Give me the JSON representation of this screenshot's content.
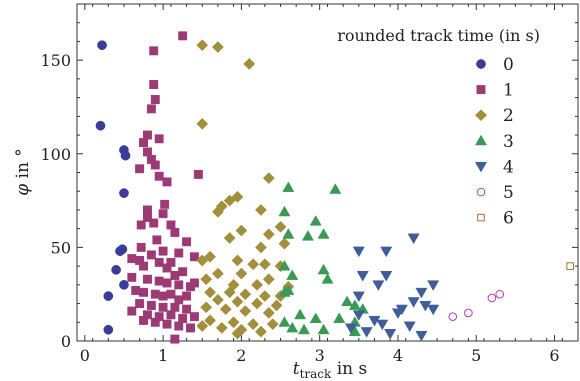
{
  "chart_data": {
    "type": "scatter",
    "xlabel": {
      "italic": "t",
      "subscript": "track",
      "suffix": " in s"
    },
    "ylabel": {
      "italic": "φ",
      "suffix": " in °"
    },
    "xlim": [
      -0.1,
      6.3
    ],
    "ylim": [
      0,
      180
    ],
    "xticks": [
      0,
      1,
      2,
      3,
      4,
      5,
      6
    ],
    "yticks": [
      0,
      50,
      100,
      150
    ],
    "legend": {
      "title": "rounded track time (in s)",
      "position": "top-right"
    },
    "series": [
      {
        "name": "0",
        "marker": "circle",
        "filled": true,
        "color": "#3b3c99",
        "points": [
          [
            0.22,
            158
          ],
          [
            0.2,
            115
          ],
          [
            0.5,
            102
          ],
          [
            0.52,
            99
          ],
          [
            0.5,
            79
          ],
          [
            0.45,
            48
          ],
          [
            0.48,
            49
          ],
          [
            0.4,
            38
          ],
          [
            0.5,
            30
          ],
          [
            0.3,
            24
          ],
          [
            0.3,
            6
          ]
        ]
      },
      {
        "name": "1",
        "marker": "square",
        "filled": true,
        "color": "#9b3a75",
        "points": [
          [
            1.25,
            163
          ],
          [
            0.88,
            155
          ],
          [
            0.88,
            137
          ],
          [
            0.9,
            129
          ],
          [
            0.85,
            124
          ],
          [
            0.8,
            110
          ],
          [
            0.95,
            108
          ],
          [
            0.75,
            106
          ],
          [
            0.8,
            101
          ],
          [
            0.85,
            97
          ],
          [
            0.9,
            94
          ],
          [
            0.7,
            92
          ],
          [
            0.95,
            88
          ],
          [
            1.05,
            85
          ],
          [
            1.45,
            89
          ],
          [
            1.02,
            73
          ],
          [
            0.8,
            70
          ],
          [
            1.0,
            68
          ],
          [
            0.8,
            66
          ],
          [
            0.88,
            63
          ],
          [
            0.72,
            62
          ],
          [
            1.1,
            62
          ],
          [
            1.15,
            58
          ],
          [
            1.3,
            53
          ],
          [
            0.92,
            54
          ],
          [
            0.72,
            50
          ],
          [
            1.0,
            48
          ],
          [
            1.2,
            47
          ],
          [
            0.85,
            46
          ],
          [
            1.4,
            45
          ],
          [
            0.6,
            44
          ],
          [
            0.7,
            43
          ],
          [
            0.95,
            42
          ],
          [
            1.1,
            42
          ],
          [
            0.75,
            40
          ],
          [
            1.05,
            39
          ],
          [
            1.25,
            37
          ],
          [
            1.15,
            35
          ],
          [
            0.6,
            34
          ],
          [
            0.8,
            33
          ],
          [
            0.95,
            32
          ],
          [
            1.05,
            31
          ],
          [
            1.2,
            30
          ],
          [
            1.35,
            29
          ],
          [
            1.4,
            31
          ],
          [
            0.65,
            27
          ],
          [
            0.75,
            26
          ],
          [
            0.9,
            25
          ],
          [
            1.0,
            24
          ],
          [
            1.1,
            25
          ],
          [
            1.3,
            24
          ],
          [
            1.2,
            22
          ],
          [
            0.7,
            20
          ],
          [
            0.85,
            19
          ],
          [
            1.0,
            18
          ],
          [
            1.15,
            18
          ],
          [
            1.3,
            17
          ],
          [
            0.6,
            16
          ],
          [
            0.8,
            14
          ],
          [
            0.95,
            13
          ],
          [
            1.1,
            14
          ],
          [
            1.25,
            12
          ],
          [
            1.4,
            13
          ],
          [
            0.75,
            11
          ],
          [
            0.9,
            10
          ],
          [
            1.05,
            9
          ],
          [
            1.2,
            8
          ],
          [
            1.35,
            7
          ],
          [
            1.15,
            1
          ]
        ]
      },
      {
        "name": "2",
        "marker": "diamond",
        "filled": true,
        "color": "#a18f3c",
        "points": [
          [
            1.5,
            158
          ],
          [
            1.7,
            157
          ],
          [
            2.1,
            148
          ],
          [
            1.5,
            116
          ],
          [
            2.35,
            87
          ],
          [
            1.85,
            75
          ],
          [
            1.95,
            77
          ],
          [
            1.75,
            72
          ],
          [
            1.7,
            69
          ],
          [
            2.25,
            70
          ],
          [
            2.5,
            61
          ],
          [
            2.0,
            59
          ],
          [
            2.35,
            57
          ],
          [
            1.85,
            55
          ],
          [
            2.55,
            52
          ],
          [
            2.25,
            50
          ],
          [
            1.6,
            45
          ],
          [
            1.5,
            43
          ],
          [
            1.95,
            43
          ],
          [
            2.15,
            41
          ],
          [
            2.5,
            40
          ],
          [
            2.3,
            41
          ],
          [
            1.7,
            36
          ],
          [
            2.0,
            36
          ],
          [
            1.55,
            33
          ],
          [
            2.35,
            33
          ],
          [
            1.9,
            30
          ],
          [
            2.2,
            30
          ],
          [
            2.6,
            29
          ],
          [
            1.6,
            26
          ],
          [
            1.85,
            26
          ],
          [
            2.05,
            25
          ],
          [
            2.3,
            24
          ],
          [
            2.5,
            24
          ],
          [
            1.7,
            22
          ],
          [
            1.95,
            21
          ],
          [
            2.2,
            20
          ],
          [
            2.45,
            19
          ],
          [
            1.55,
            18
          ],
          [
            1.8,
            17
          ],
          [
            2.05,
            16
          ],
          [
            2.35,
            15
          ],
          [
            1.6,
            11
          ],
          [
            1.9,
            10
          ],
          [
            2.15,
            9
          ],
          [
            2.4,
            9
          ],
          [
            1.5,
            8
          ],
          [
            1.75,
            7
          ],
          [
            2.0,
            6
          ],
          [
            2.25,
            5
          ],
          [
            1.95,
            4
          ]
        ]
      },
      {
        "name": "3",
        "marker": "triangle-up",
        "filled": true,
        "color": "#3a9a55",
        "points": [
          [
            2.6,
            82
          ],
          [
            3.2,
            81
          ],
          [
            2.55,
            69
          ],
          [
            2.95,
            64
          ],
          [
            2.85,
            56
          ],
          [
            2.6,
            57
          ],
          [
            3.05,
            57
          ],
          [
            2.55,
            40
          ],
          [
            3.05,
            38
          ],
          [
            2.65,
            35
          ],
          [
            3.1,
            33
          ],
          [
            2.55,
            26
          ],
          [
            2.6,
            27
          ],
          [
            3.35,
            21
          ],
          [
            3.45,
            19
          ],
          [
            3.55,
            17
          ],
          [
            2.75,
            14
          ],
          [
            2.95,
            12
          ],
          [
            3.25,
            12
          ],
          [
            2.55,
            10
          ],
          [
            3.45,
            10
          ],
          [
            2.65,
            7
          ],
          [
            2.8,
            6
          ],
          [
            3.05,
            6
          ],
          [
            3.45,
            5
          ]
        ]
      },
      {
        "name": "4",
        "marker": "triangle-down",
        "filled": true,
        "color": "#3f5d99",
        "points": [
          [
            4.2,
            55
          ],
          [
            3.5,
            48
          ],
          [
            3.85,
            48
          ],
          [
            3.55,
            35
          ],
          [
            3.85,
            35
          ],
          [
            3.75,
            30
          ],
          [
            4.45,
            30
          ],
          [
            4.3,
            26
          ],
          [
            3.5,
            24
          ],
          [
            4.2,
            21
          ],
          [
            4.35,
            19
          ],
          [
            4.05,
            17
          ],
          [
            4.45,
            17
          ],
          [
            4.0,
            15
          ],
          [
            3.5,
            14
          ],
          [
            3.7,
            11
          ],
          [
            3.8,
            9
          ],
          [
            4.15,
            8
          ],
          [
            3.4,
            7
          ],
          [
            3.6,
            5
          ],
          [
            3.9,
            4
          ],
          [
            4.3,
            3
          ]
        ]
      },
      {
        "name": "5",
        "marker": "circle",
        "filled": false,
        "color": "#b43fbd",
        "points": [
          [
            4.7,
            13
          ],
          [
            4.9,
            15
          ],
          [
            5.2,
            23
          ],
          [
            5.3,
            25
          ]
        ]
      },
      {
        "name": "6",
        "marker": "square",
        "filled": false,
        "color": "#a5702f",
        "points": [
          [
            6.2,
            40
          ]
        ]
      }
    ]
  }
}
